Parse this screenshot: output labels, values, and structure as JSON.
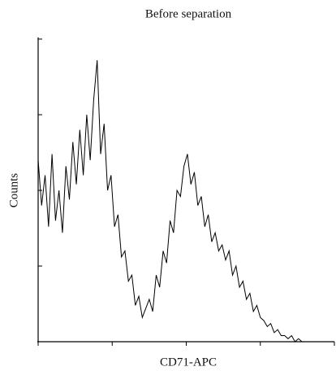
{
  "chart_data": {
    "type": "line",
    "title": "Before separation",
    "y_label": "Counts",
    "x_label": "CD71-APC",
    "x": [
      0,
      12,
      24,
      36,
      48,
      60,
      72,
      84,
      96,
      108,
      120,
      132,
      144,
      156,
      168,
      180,
      192,
      204,
      216,
      228,
      240,
      252,
      264,
      276,
      288,
      300,
      312,
      324,
      336,
      348,
      360,
      372,
      384,
      396,
      408,
      420,
      432,
      444,
      456,
      468,
      480,
      492,
      504,
      516,
      528,
      540,
      552,
      564,
      576,
      588,
      600,
      612,
      624,
      636,
      648,
      660,
      672,
      684,
      696,
      708,
      720,
      732,
      744,
      756,
      768,
      780,
      792,
      804,
      816,
      828,
      840,
      852,
      864,
      876,
      888,
      900,
      912,
      924,
      936,
      948,
      960,
      972,
      984,
      996,
      1008,
      1020
    ],
    "values": [
      60,
      45,
      55,
      38,
      62,
      40,
      50,
      36,
      58,
      47,
      66,
      52,
      70,
      55,
      75,
      60,
      80,
      93,
      62,
      72,
      50,
      55,
      38,
      42,
      28,
      30,
      20,
      22,
      12,
      15,
      8,
      11,
      14,
      10,
      22,
      18,
      30,
      26,
      40,
      36,
      50,
      48,
      58,
      62,
      52,
      56,
      45,
      48,
      38,
      42,
      33,
      36,
      30,
      32,
      27,
      30,
      22,
      25,
      18,
      20,
      14,
      16,
      10,
      12,
      8,
      7,
      5,
      6,
      3,
      4,
      2,
      2,
      1,
      2,
      0,
      1,
      0,
      0,
      0,
      0,
      0,
      0,
      0,
      0,
      0,
      0
    ],
    "color": "#000000",
    "xlim": [
      0,
      1024
    ],
    "xticks": [
      0,
      256,
      512,
      768,
      1024
    ],
    "ylim": [
      0,
      100
    ],
    "yticks": [
      0,
      25,
      50,
      75,
      100
    ]
  }
}
